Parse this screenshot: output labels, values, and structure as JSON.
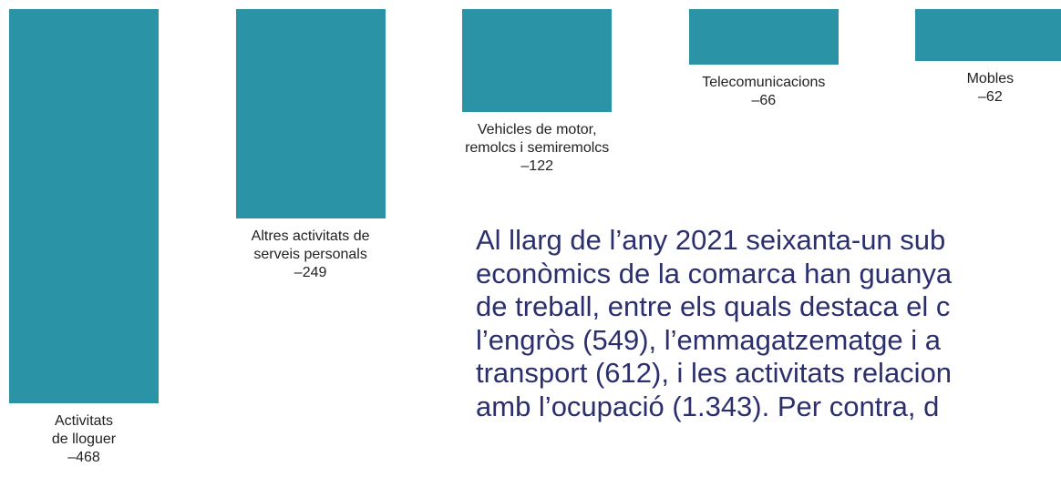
{
  "chart_data": {
    "type": "bar",
    "categories": [
      "Activitats\nde lloguer",
      "Altres activitats de\nserveis personals",
      "Vehicles de motor,\nremolcs i semiremolcs",
      "Telecomunicacions",
      "Mobles"
    ],
    "values": [
      -468,
      -249,
      -122,
      -66,
      -62
    ],
    "value_labels": [
      "–468",
      "–249",
      "–122",
      "–66",
      "–62"
    ],
    "color": "#2a93a6"
  },
  "text": {
    "lines": [
      "Al llarg de l’any 2021 seixanta-un sub",
      "econòmics de la comarca han guanya",
      "de treball, entre els quals destaca el c",
      "l’engròs (549), l’emmagatzematge i a",
      "transport (612), i les activitats relacion",
      "amb l’ocupació (1.343). Per contra, d"
    ]
  }
}
